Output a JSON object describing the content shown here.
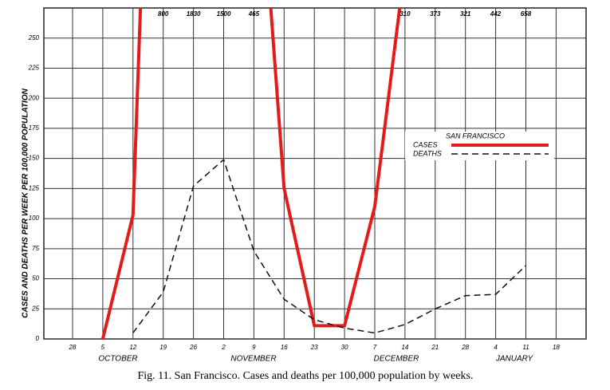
{
  "chart_data": {
    "type": "line",
    "ylabel": "CASES AND DEATHS PER WEEK PER 100,000 POPULATION",
    "caption": "Fig. 11.   San Francisco.   Cases and deaths per 100,000 population by weeks.",
    "categories": [
      "28",
      "5",
      "12",
      "19",
      "26",
      "2",
      "9",
      "16",
      "23",
      "30",
      "7",
      "14",
      "21",
      "28",
      "4",
      "11",
      "18"
    ],
    "months": [
      "OCTOBER",
      "NOVEMBER",
      "DECEMBER",
      "JANUARY"
    ],
    "series": [
      {
        "name": "CASES",
        "color": "#e31b1b",
        "dash": false,
        "values": [
          null,
          0,
          103,
          800,
          1830,
          1500,
          465,
          125,
          11,
          11,
          110,
          310,
          373,
          321,
          442,
          658,
          null
        ],
        "value_labels": [
          null,
          null,
          null,
          "800",
          "1830",
          "1500",
          "465",
          null,
          null,
          null,
          null,
          "310",
          "373",
          "321",
          "442",
          "658",
          null
        ]
      },
      {
        "name": "DEATHS",
        "color": "#111111",
        "dash": true,
        "values": [
          null,
          null,
          5,
          39,
          127,
          149,
          73,
          33,
          16,
          9,
          5,
          12,
          25,
          36,
          37,
          61,
          null
        ]
      }
    ],
    "legend_title": "SAN FRANCISCO",
    "legend": "right",
    "ylim": [
      0,
      275
    ],
    "yticks": [
      0,
      25,
      50,
      75,
      100,
      125,
      150,
      175,
      200,
      225,
      250
    ],
    "grid": true
  }
}
